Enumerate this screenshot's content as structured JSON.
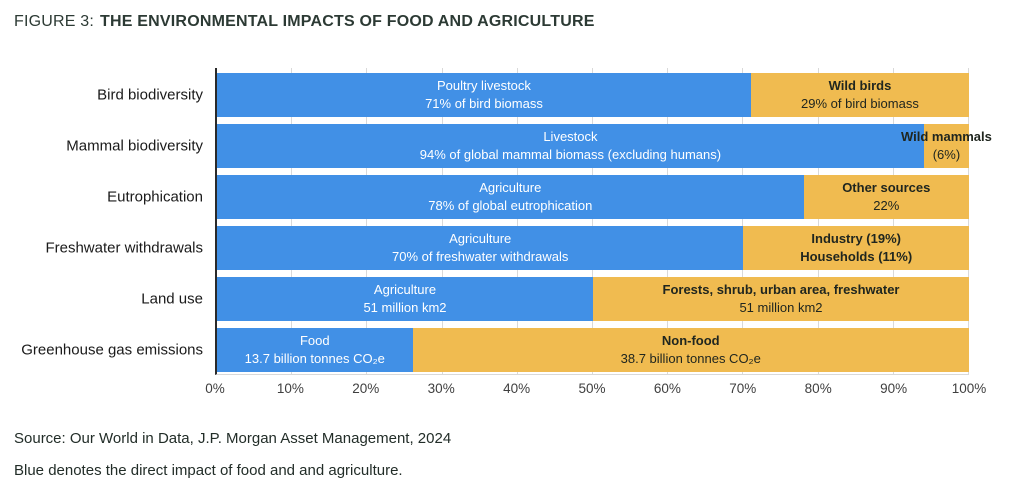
{
  "title": {
    "prefix": "FIGURE 3:",
    "main": "THE ENVIRONMENTAL IMPACTS OF FOOD AND AGRICULTURE"
  },
  "source": "Source: Our World in Data, J.P. Morgan Asset Management, 2024",
  "note": "Blue denotes the direct impact of food and and agriculture.",
  "colors": {
    "blue": "#4190E6",
    "orange": "#F0BB50",
    "axis_line": "#2A2A2A",
    "gridline": "#D9D9D9"
  },
  "chart_data": {
    "type": "bar",
    "orientation": "horizontal-stacked",
    "title": "FIGURE 3: THE ENVIRONMENTAL IMPACTS OF FOOD AND AGRICULTURE",
    "xlabel": "",
    "ylabel": "",
    "xlim": [
      0,
      100
    ],
    "x_ticks": [
      "0%",
      "10%",
      "20%",
      "30%",
      "40%",
      "50%",
      "60%",
      "70%",
      "80%",
      "90%",
      "100%"
    ],
    "grid": "vertical",
    "legend": "none",
    "rows": [
      {
        "category": "Bird biodiversity",
        "segments": [
          {
            "pct": 71,
            "color": "blue",
            "lines": [
              "Poultry livestock",
              "71% of bird biomass"
            ]
          },
          {
            "pct": 29,
            "color": "orange",
            "lines": [
              "Wild birds",
              "29% of bird biomass"
            ]
          }
        ]
      },
      {
        "category": "Mammal biodiversity",
        "segments": [
          {
            "pct": 94,
            "color": "blue",
            "lines": [
              "Livestock",
              "94% of global mammal biomass (excluding humans)"
            ]
          },
          {
            "pct": 6,
            "color": "orange",
            "lines": [
              "Wild mammals",
              "(6%)"
            ]
          }
        ]
      },
      {
        "category": "Eutrophication",
        "segments": [
          {
            "pct": 78,
            "color": "blue",
            "lines": [
              "Agriculture",
              "78% of global eutrophication"
            ]
          },
          {
            "pct": 22,
            "color": "orange",
            "lines": [
              "Other sources",
              "22%"
            ]
          }
        ]
      },
      {
        "category": "Freshwater withdrawals",
        "segments": [
          {
            "pct": 70,
            "color": "blue",
            "lines": [
              "Agriculture",
              "70% of freshwater withdrawals"
            ]
          },
          {
            "pct": 30,
            "color": "orange",
            "lines": [
              "Industry (19%)",
              "Households (11%)"
            ],
            "bold_second": true
          }
        ]
      },
      {
        "category": "Land use",
        "segments": [
          {
            "pct": 50,
            "color": "blue",
            "lines": [
              "Agriculture",
              "51 million km2"
            ]
          },
          {
            "pct": 50,
            "color": "orange",
            "lines": [
              "Forests, shrub, urban area, freshwater",
              "51 million km2"
            ]
          }
        ]
      },
      {
        "category": "Greenhouse gas emissions",
        "segments": [
          {
            "pct": 26,
            "color": "blue",
            "lines": [
              "Food",
              "13.7 billion tonnes CO₂e"
            ]
          },
          {
            "pct": 74,
            "color": "orange",
            "lines": [
              "Non-food",
              "38.7 billion tonnes CO₂e"
            ]
          }
        ]
      }
    ]
  }
}
